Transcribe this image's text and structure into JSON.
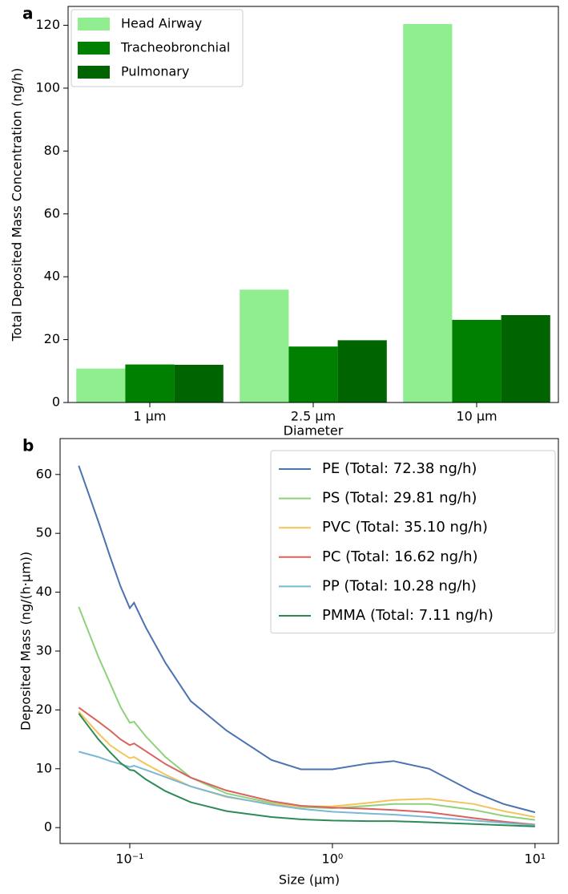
{
  "chart_data": [
    {
      "type": "bar",
      "panel_label": "a",
      "xlabel": "Diameter",
      "ylabel": "Total Deposited Mass Concentration (ng/h)",
      "categories": [
        "1 µm",
        "2.5 µm",
        "10 µm"
      ],
      "series": [
        {
          "name": "Head Airway",
          "color": "#90ee90",
          "values": [
            10.8,
            35.9,
            120.4
          ]
        },
        {
          "name": "Tracheobronchial",
          "color": "#008000",
          "values": [
            12.1,
            17.8,
            26.3
          ]
        },
        {
          "name": "Pulmonary",
          "color": "#006400",
          "values": [
            12.0,
            19.8,
            27.8
          ]
        }
      ],
      "ylim": [
        0,
        126
      ],
      "yticks": [
        0,
        20,
        40,
        60,
        80,
        100,
        120
      ],
      "legend": "upper left"
    },
    {
      "type": "line",
      "panel_label": "b",
      "xlabel": "Size (µm)",
      "ylabel": "Deposited Mass (ng/(h·µm))",
      "xscale": "log",
      "x": [
        0.056,
        0.07,
        0.08,
        0.09,
        0.1,
        0.105,
        0.12,
        0.15,
        0.2,
        0.3,
        0.5,
        0.7,
        1,
        1.5,
        2,
        3,
        5,
        7,
        10
      ],
      "series": [
        {
          "name": "PE (Total: 72.38 ng/h)",
          "color": "#4c72b0",
          "values": [
            61.5,
            52,
            46,
            41,
            37.3,
            38.2,
            34,
            28,
            21.5,
            16.5,
            11.5,
            9.9,
            9.9,
            10.9,
            11.3,
            10,
            6,
            4,
            2.6
          ]
        },
        {
          "name": "PS (Total: 29.81 ng/h)",
          "color": "#8fd17a",
          "values": [
            37.5,
            29,
            24.5,
            20.5,
            17.8,
            18,
            15.5,
            12,
            8.5,
            5.8,
            4.2,
            3.5,
            3.3,
            3.7,
            4,
            4,
            3,
            2,
            1.3
          ]
        },
        {
          "name": "PVC (Total: 35.10 ng/h)",
          "color": "#f4c45a",
          "values": [
            19.7,
            16,
            14,
            12.8,
            11.8,
            12,
            10.8,
            9,
            7,
            5.2,
            4,
            3.6,
            3.6,
            4.2,
            4.7,
            4.9,
            4,
            2.8,
            1.8
          ]
        },
        {
          "name": "PC (Total: 16.62 ng/h)",
          "color": "#d9625e",
          "values": [
            20.4,
            18,
            16.5,
            15,
            14,
            14.3,
            13,
            10.8,
            8.5,
            6.3,
            4.5,
            3.7,
            3.4,
            3.2,
            3.0,
            2.6,
            1.6,
            1,
            0.5
          ]
        },
        {
          "name": "PP (Total: 10.28 ng/h)",
          "color": "#7ab8d6",
          "values": [
            12.9,
            12,
            11.3,
            10.8,
            10.3,
            10.5,
            9.8,
            8.6,
            7,
            5.3,
            3.9,
            3.2,
            2.7,
            2.4,
            2.2,
            1.8,
            1.2,
            0.8,
            0.4
          ]
        },
        {
          "name": "PMMA (Total: 7.11 ng/h)",
          "color": "#2e8b57",
          "values": [
            19.4,
            15,
            12.8,
            11,
            9.8,
            9.7,
            8.2,
            6.2,
            4.3,
            2.8,
            1.8,
            1.4,
            1.2,
            1.1,
            1.1,
            0.9,
            0.6,
            0.4,
            0.2
          ]
        }
      ],
      "xlim": [
        0.0453,
        13.04
      ],
      "xticks": [
        {
          "value": 0.1,
          "label": "10⁻¹"
        },
        {
          "value": 1,
          "label": "10⁰"
        },
        {
          "value": 10,
          "label": "10¹"
        }
      ],
      "ylim": [
        -2.7,
        66.1
      ],
      "yticks": [
        0,
        10,
        20,
        30,
        40,
        50,
        60
      ],
      "legend": "upper right"
    }
  ]
}
